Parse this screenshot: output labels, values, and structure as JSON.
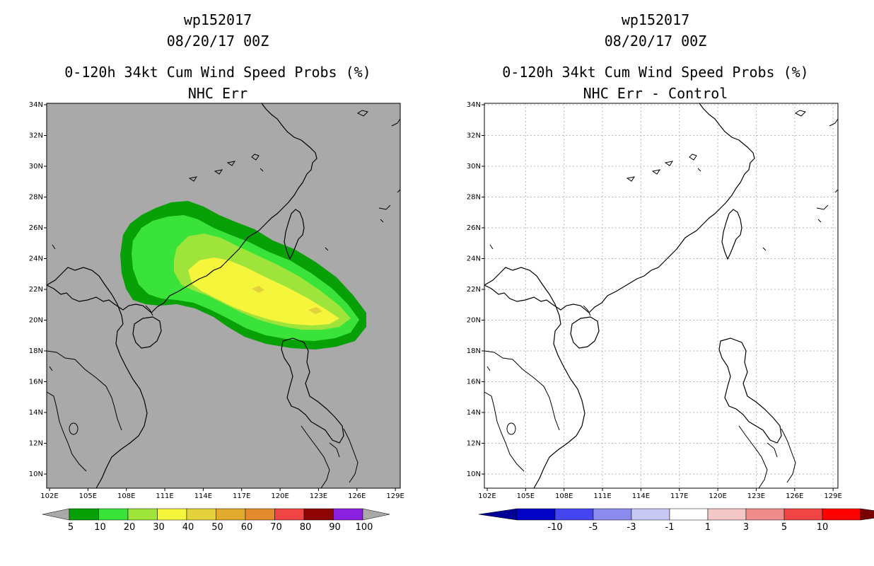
{
  "left": {
    "title_line1": "wp152017",
    "title_line2": "08/20/17 00Z",
    "title_line3": "0-120h 34kt Cum Wind Speed Probs (%)",
    "title_line4": "NHC Err",
    "background": "#a9a9a9",
    "colorbar": {
      "labels": [
        "5",
        "10",
        "20",
        "30",
        "40",
        "50",
        "60",
        "70",
        "80",
        "90",
        "100"
      ],
      "colors": [
        "#07a007",
        "#3ae33a",
        "#9ee43a",
        "#f5f53b",
        "#e3d23b",
        "#e3ab2e",
        "#e38c2e",
        "#f04545",
        "#8e0404",
        "#8a20e0"
      ],
      "end_color": "#a9a9a9"
    }
  },
  "right": {
    "title_line1": "wp152017",
    "title_line2": "08/20/17 00Z",
    "title_line3": "0-120h 34kt Cum Wind Speed Probs (%)",
    "title_line4": "NHC Err - Control",
    "background": "#ffffff",
    "colorbar": {
      "labels": [
        "-10",
        "-5",
        "-3",
        "-1",
        "1",
        "3",
        "5",
        "10"
      ],
      "colors": [
        "#0303c8",
        "#4545f0",
        "#8c8cf0",
        "#c8c8f5",
        "#ffffff",
        "#f5c8c8",
        "#f08c8c",
        "#f04545",
        "#ff0000"
      ],
      "end_colors": [
        "#000096",
        "#7a0000"
      ]
    }
  },
  "map": {
    "lon_labels": [
      "102E",
      "105E",
      "108E",
      "111E",
      "114E",
      "117E",
      "120E",
      "123E",
      "126E",
      "129E"
    ],
    "lat_labels": [
      "10N",
      "12N",
      "14N",
      "16N",
      "18N",
      "20N",
      "22N",
      "24N",
      "26N",
      "28N",
      "30N",
      "32N",
      "34N"
    ]
  }
}
